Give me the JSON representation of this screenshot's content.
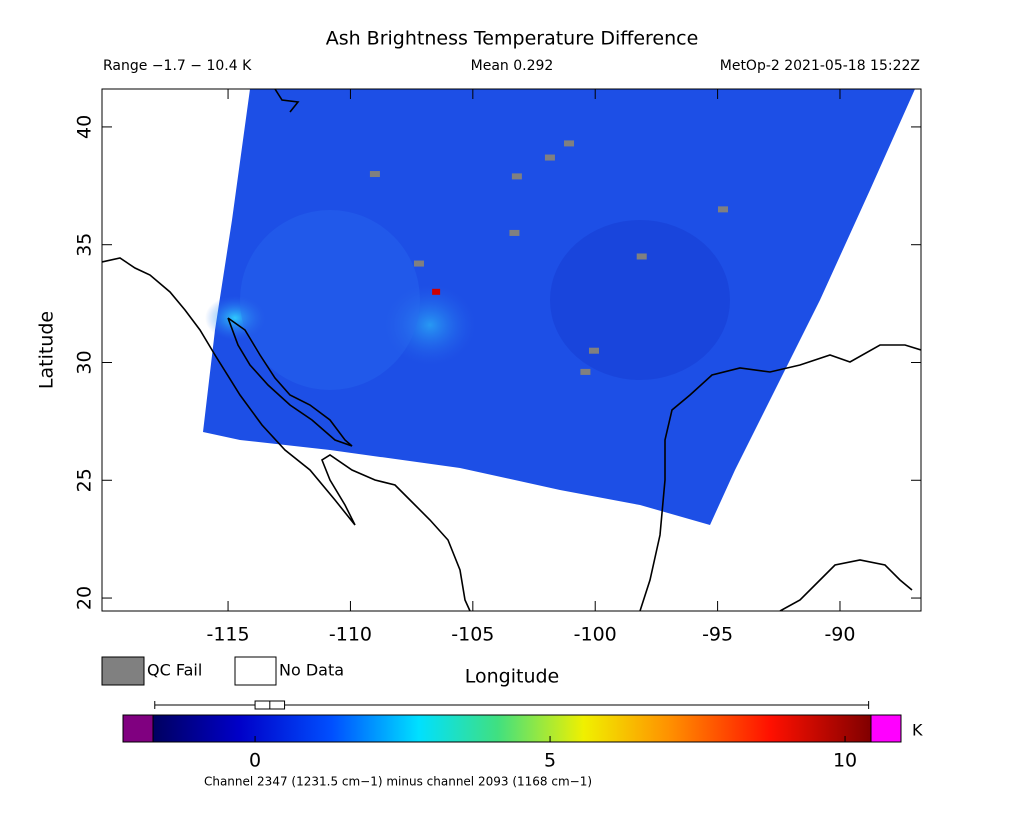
{
  "chart_data": {
    "type": "map",
    "title": "Ash Brightness Temperature Difference",
    "range_text": "Range −1.7 − 10.4 K",
    "mean_text": "Mean 0.292",
    "source_text": "MetOp-2 2021-05-18 15:22Z",
    "xlabel": "Longitude",
    "ylabel": "Latitude",
    "xlim": [
      -120.15,
      -86.69
    ],
    "ylim": [
      19.45,
      41.61
    ],
    "xticks": [
      -115,
      -110,
      -105,
      -100,
      -95,
      -90
    ],
    "yticks": [
      20,
      25,
      30,
      35,
      40
    ],
    "qc_fail_color": "#808080",
    "qc_fail_pixels": {
      "lon": [
        -109.0,
        -103.2,
        -101.85,
        -101.07,
        -94.78,
        -103.3,
        -98.1,
        -107.2,
        -100.05,
        -100.4
      ],
      "lat": [
        38.0,
        37.9,
        38.7,
        39.3,
        36.5,
        35.5,
        34.5,
        34.2,
        30.5,
        29.6
      ]
    },
    "hot_pixels": {
      "lon": [
        -106.5
      ],
      "lat": [
        33.0
      ],
      "values": [
        9.5
      ]
    },
    "legend": [
      "QC Fail",
      "No Data"
    ],
    "colorbar": {
      "lim": [
        -1.73,
        10.44
      ],
      "ticks": [
        0,
        5,
        10
      ],
      "unit": "K",
      "box": {
        "min": -1.7,
        "q1": 0,
        "median": 0.25,
        "q3": 0.5,
        "max": 10.4
      },
      "label": "Channel 2347 (1231.5 cm−1) minus channel 2093 (1168 cm−1)"
    }
  }
}
